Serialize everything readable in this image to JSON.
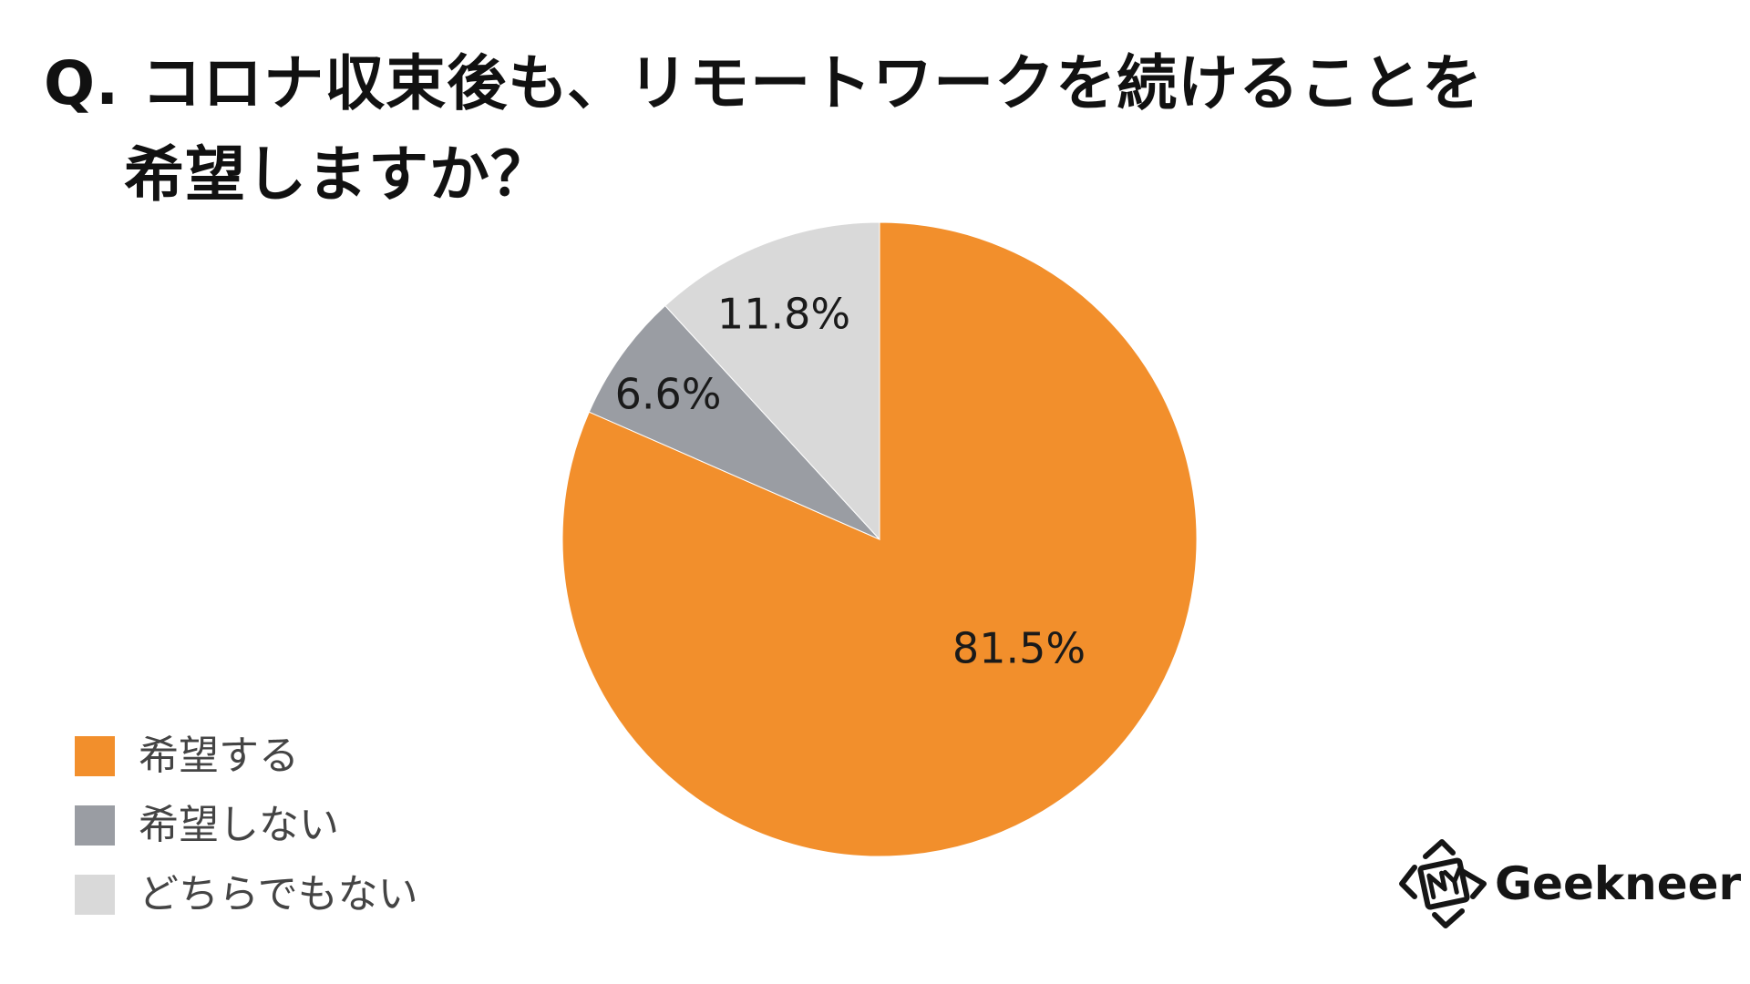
{
  "title": {
    "line1": "Q. コロナ収束後も、リモートワークを続けることを",
    "line2": "希望しますか？"
  },
  "chart_data": {
    "type": "pie",
    "start": "12 o'clock",
    "direction": "clockwise",
    "slices": [
      {
        "label": "希望する",
        "value": 81.5,
        "value_label": "81.5%",
        "color": "#F28F2C"
      },
      {
        "label": "希望しない",
        "value": 6.6,
        "value_label": "6.6%",
        "color": "#9A9DA3"
      },
      {
        "label": "どちらでもない",
        "value": 11.8,
        "value_label": "11.8%",
        "color": "#D9D9D9"
      }
    ],
    "legend_position": "bottom-left"
  },
  "brand": {
    "name": "Geekneer",
    "icon": "geekneer-logo-icon"
  }
}
